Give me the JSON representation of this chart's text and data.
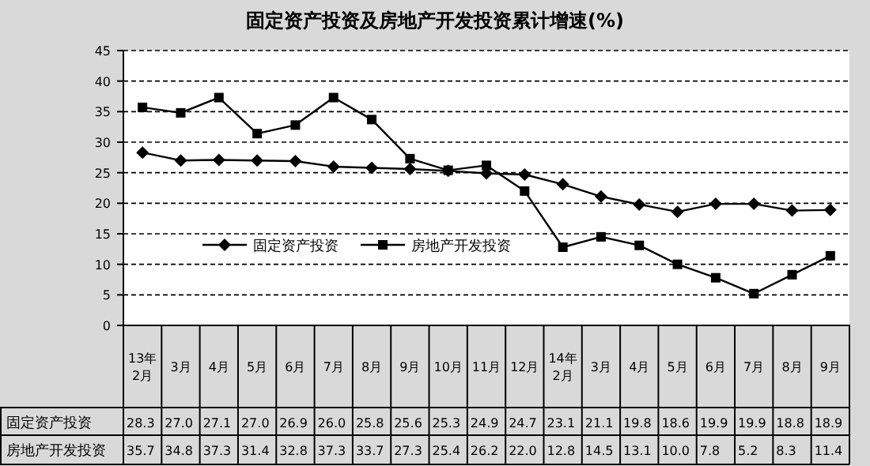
{
  "chart_data": {
    "type": "line",
    "title": "固定资产投资及房地产开发投资累计增速(%)",
    "categories": [
      "13年\n2月",
      "3月",
      "4月",
      "5月",
      "6月",
      "7月",
      "8月",
      "9月",
      "10月",
      "11月",
      "12月",
      "14年\n2月",
      "3月",
      "4月",
      "5月",
      "6月",
      "7月",
      "8月",
      "9月"
    ],
    "series": [
      {
        "name": "固定资产投资",
        "color": "#000000",
        "marker": "diamond",
        "values": [
          28.3,
          27.0,
          27.1,
          27.0,
          26.9,
          26.0,
          25.8,
          25.6,
          25.3,
          24.9,
          24.7,
          23.1,
          21.1,
          19.8,
          18.6,
          19.9,
          19.9,
          18.8,
          18.9
        ],
        "value_labels": [
          "28.3",
          "27.0",
          "27.1",
          "27.0",
          "26.9",
          "26.0",
          "25.8",
          "25.6",
          "25.3",
          "24.9",
          "24.7",
          "23.1",
          "21.1",
          "19.8",
          "18.6",
          "19.9",
          "19.9",
          "18.8",
          "18.9"
        ]
      },
      {
        "name": "房地产开发投资",
        "color": "#000000",
        "marker": "square",
        "values": [
          35.7,
          34.8,
          37.3,
          31.4,
          32.8,
          37.3,
          33.7,
          27.3,
          25.4,
          26.2,
          22.0,
          12.8,
          14.5,
          13.1,
          10.0,
          7.8,
          5.2,
          8.3,
          11.4
        ],
        "value_labels": [
          "35.7",
          "34.8",
          "37.3",
          "31.4",
          "32.8",
          "37.3",
          "33.7",
          "27.3",
          "25.4",
          "26.2",
          "22.0",
          "12.8",
          "14.5",
          "13.1",
          "10.0",
          "7.8",
          "5.2",
          "8.3",
          "11.4"
        ]
      }
    ],
    "ylim": [
      0,
      45
    ],
    "yticks": [
      0,
      5,
      10,
      15,
      20,
      25,
      30,
      35,
      40,
      45
    ],
    "grid": "y",
    "legend": "left",
    "line_style": "solid"
  }
}
